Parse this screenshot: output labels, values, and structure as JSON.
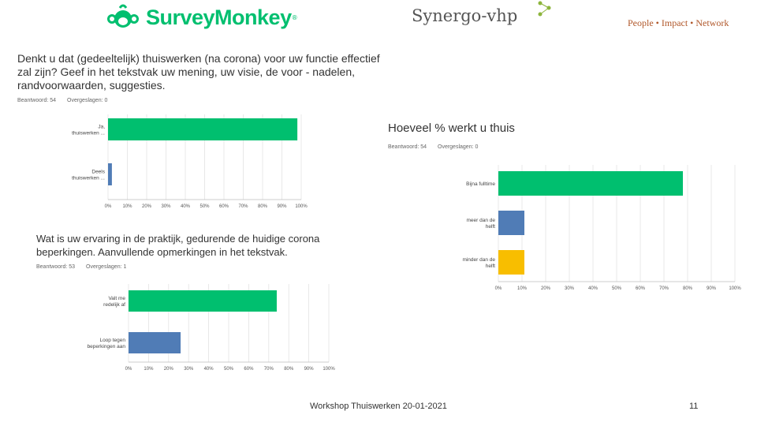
{
  "header": {
    "surveymonkey_logo": "SurveyMonkey",
    "registered_mark": "®",
    "synergo_logo_part1": "Synergo",
    "synergo_logo_part2": "-vhp",
    "tagline": "People • Impact • Network",
    "brand_colors": {
      "surveymonkey": "#00bf6f",
      "synergo_green": "#8db53c",
      "tagline": "#b0572a"
    }
  },
  "chart_data": [
    {
      "type": "bar",
      "orientation": "horizontal",
      "title": "Denkt u dat (gedeeltelijk) thuiswerken (na corona) voor uw functie effectief zal zijn? Geef in het tekstvak uw mening, uw visie, de voor - nadelen, randvoorwaarden, suggesties.",
      "title_lines": [
        "Denkt u dat (gedeeltelijk) thuiswerken (na corona) voor uw functie effectief",
        "zal zijn?  Geef in het tekstvak uw mening, uw visie,  de voor - nadelen,",
        "randvoorwaarden, suggesties."
      ],
      "answered": "Beantwoord: 54",
      "skipped": "Overgeslagen: 0",
      "categories": [
        [
          "Ja,",
          "thuiswerken ..."
        ],
        [
          "Deels",
          "thuiswerken ..."
        ]
      ],
      "values": [
        0.98,
        0.02
      ],
      "colors": [
        "#00bf6f",
        "#507cb6"
      ],
      "x_ticks": [
        "0%",
        "10%",
        "20%",
        "30%",
        "40%",
        "50%",
        "60%",
        "70%",
        "80%",
        "90%",
        "100%"
      ],
      "xlim": [
        0,
        1
      ],
      "grid": true
    },
    {
      "type": "bar",
      "orientation": "horizontal",
      "title": "Hoeveel % werkt u thuis",
      "title_lines": [
        "Hoeveel % werkt u thuis"
      ],
      "answered": "Beantwoord: 54",
      "skipped": "Overgeslagen: 0",
      "categories": [
        [
          "Bijna fulltime"
        ],
        [
          "meer dan de",
          "helft"
        ],
        [
          "minder dan de",
          "helft"
        ]
      ],
      "values": [
        0.78,
        0.11,
        0.11
      ],
      "colors": [
        "#00bf6f",
        "#507cb6",
        "#f8be00"
      ],
      "x_ticks": [
        "0%",
        "10%",
        "20%",
        "30%",
        "40%",
        "50%",
        "60%",
        "70%",
        "80%",
        "90%",
        "100%"
      ],
      "xlim": [
        0,
        1
      ],
      "grid": true
    },
    {
      "type": "bar",
      "orientation": "horizontal",
      "title": "Wat is uw ervaring in de praktijk, gedurende de huidige corona beperkingen. Aanvullende opmerkingen in het tekstvak.",
      "title_lines": [
        "Wat is uw ervaring in de praktijk, gedurende de huidige corona",
        "beperkingen. Aanvullende opmerkingen in het tekstvak."
      ],
      "answered": "Beantwoord: 53",
      "skipped": "Overgeslagen: 1",
      "categories": [
        [
          "Valt me",
          "redelijk af"
        ],
        [
          "Loop tegen",
          "beperkingen aan"
        ]
      ],
      "values": [
        0.74,
        0.26
      ],
      "colors": [
        "#00bf6f",
        "#507cb6"
      ],
      "x_ticks": [
        "0%",
        "10%",
        "20%",
        "30%",
        "40%",
        "50%",
        "60%",
        "70%",
        "80%",
        "90%",
        "100%"
      ],
      "xlim": [
        0,
        1
      ],
      "grid": true
    }
  ],
  "footer": {
    "text": "Workshop Thuiswerken 20-01-2021",
    "page_number": "11"
  }
}
